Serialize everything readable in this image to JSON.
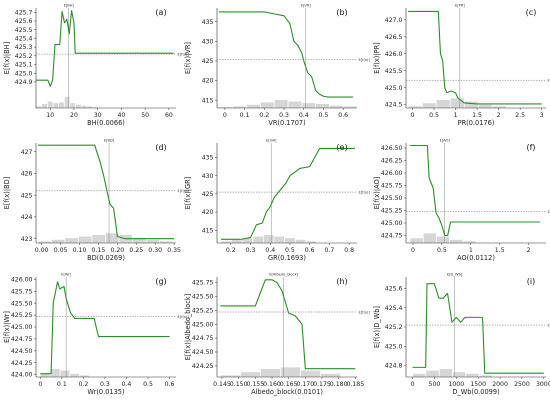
{
  "chart_data": [
    {
      "type": "line",
      "panel": "(a)",
      "xlabel": "BH(0.0066)",
      "ylabel": "E[f(x)|BH]",
      "xlim": [
        4,
        63
      ],
      "ylim": [
        424.6,
        425.75
      ],
      "xticks": [
        10,
        20,
        30,
        40,
        50,
        60
      ],
      "yticks": [
        424.9,
        425.0,
        425.1,
        425.2,
        425.3,
        425.4,
        425.5,
        425.6,
        425.7
      ],
      "ref_x": 17.8,
      "ref_x_label": "E[BH]",
      "ref_y": 425.22,
      "ref_y_label": "E[f(x)]",
      "x": [
        4,
        9,
        10,
        11,
        12,
        14,
        15,
        16,
        17,
        18,
        19,
        20,
        20.5,
        21,
        40,
        50,
        62
      ],
      "y": [
        424.92,
        424.92,
        424.85,
        424.92,
        425.33,
        425.33,
        425.71,
        425.58,
        425.62,
        425.45,
        425.72,
        425.58,
        425.23,
        425.23,
        425.23,
        425.23,
        425.23
      ],
      "histogram": [
        0.1,
        0.25,
        0.4,
        0.3,
        0.35,
        0.7,
        0.3,
        0.2,
        0.15,
        0.1,
        0.05
      ]
    },
    {
      "type": "line",
      "panel": "(b)",
      "xlabel": "VR(0.1707)",
      "ylabel": "E[f(x)|VR]",
      "xlim": [
        -0.04,
        0.67
      ],
      "ylim": [
        413,
        438.5
      ],
      "xticks": [
        0.0,
        0.1,
        0.2,
        0.3,
        0.4,
        0.5,
        0.6
      ],
      "yticks": [
        415,
        420,
        425,
        430,
        435
      ],
      "ref_x": 0.41,
      "ref_x_label": "E[VR]",
      "ref_y": 425.3,
      "ref_y_label": "E[f(x)]",
      "x": [
        -0.03,
        0.2,
        0.25,
        0.3,
        0.33,
        0.35,
        0.37,
        0.39,
        0.4,
        0.42,
        0.44,
        0.46,
        0.48,
        0.5,
        0.52,
        0.55,
        0.6,
        0.65
      ],
      "y": [
        437.5,
        437.5,
        437.0,
        436.5,
        434.5,
        430.0,
        429.0,
        427.0,
        425.0,
        422.0,
        421.0,
        417.5,
        416.5,
        416.0,
        415.8,
        415.8,
        415.8,
        415.8
      ],
      "histogram": [
        0.05,
        0.1,
        0.2,
        0.35,
        0.5,
        0.4,
        0.3,
        0.25,
        0.15,
        0.1
      ]
    },
    {
      "type": "line",
      "panel": "(c)",
      "xlabel": "PR(0.0176)",
      "ylabel": "E[f(x)|PR]",
      "xlim": [
        -0.15,
        3.1
      ],
      "ylim": [
        424.4,
        427.35
      ],
      "xticks": [
        0.0,
        0.5,
        1.0,
        1.5,
        2.0,
        2.5,
        3.0
      ],
      "yticks": [
        424.5,
        425.0,
        425.5,
        426.0,
        426.5,
        427.0
      ],
      "ref_x": 1.1,
      "ref_x_label": "E[PR]",
      "ref_y": 425.22,
      "ref_y_label": "E[f(x)]",
      "x": [
        -0.1,
        0.5,
        0.6,
        0.65,
        0.7,
        0.75,
        0.8,
        0.9,
        1.0,
        1.05,
        1.2,
        1.5,
        2.0,
        3.0
      ],
      "y": [
        427.25,
        427.25,
        427.25,
        426.0,
        425.8,
        425.0,
        424.85,
        424.9,
        424.85,
        424.7,
        424.55,
        424.52,
        424.52,
        424.52
      ],
      "histogram": [
        0.1,
        0.3,
        0.5,
        0.6,
        0.4,
        0.2,
        0.1
      ]
    },
    {
      "type": "line",
      "panel": "(d)",
      "xlabel": "BD(0.0269)",
      "ylabel": "E[f(x)|BD]",
      "xlim": [
        -0.015,
        0.355
      ],
      "ylim": [
        422.8,
        427.4
      ],
      "xticks": [
        0.0,
        0.05,
        0.1,
        0.15,
        0.2,
        0.25,
        0.3,
        0.35
      ],
      "xtick_labels": [
        "0.00",
        "0.05",
        "0.10",
        "0.15",
        "0.20",
        "0.25",
        "0.30",
        "0.35"
      ],
      "yticks": [
        423,
        424,
        425,
        426,
        427
      ],
      "ref_x": 0.178,
      "ref_x_label": "E[BD]",
      "ref_y": 425.2,
      "ref_y_label": "E[f(x)]",
      "x": [
        -0.01,
        0.12,
        0.14,
        0.155,
        0.165,
        0.175,
        0.18,
        0.19,
        0.195,
        0.2,
        0.22,
        0.25,
        0.3,
        0.35
      ],
      "y": [
        427.3,
        427.3,
        427.3,
        426.5,
        425.8,
        425.0,
        424.6,
        424.4,
        423.8,
        423.1,
        423.0,
        423.0,
        423.0,
        423.0
      ],
      "histogram": [
        0.1,
        0.2,
        0.3,
        0.4,
        0.5,
        0.6,
        0.5,
        0.3,
        0.2,
        0.1
      ]
    },
    {
      "type": "line",
      "panel": "(e)",
      "xlabel": "GR(0.1693)",
      "ylabel": "E[f(x)|GR]",
      "xlim": [
        0.13,
        0.84
      ],
      "ylim": [
        411.5,
        439.0
      ],
      "xticks": [
        0.2,
        0.3,
        0.4,
        0.5,
        0.6,
        0.7,
        0.8
      ],
      "yticks": [
        415,
        420,
        425,
        430,
        435
      ],
      "ref_x": 0.405,
      "ref_x_label": "E[GR]",
      "ref_y": 425.5,
      "ref_y_label": "E[f(x)]",
      "x": [
        0.15,
        0.25,
        0.3,
        0.33,
        0.36,
        0.38,
        0.4,
        0.42,
        0.45,
        0.48,
        0.5,
        0.55,
        0.6,
        0.65,
        0.7,
        0.83
      ],
      "y": [
        412.5,
        412.5,
        413.0,
        416.5,
        417.0,
        420.0,
        421.5,
        424.0,
        426.0,
        428.0,
        430.0,
        432.0,
        432.5,
        437.5,
        437.5,
        437.5
      ],
      "histogram": [
        0.1,
        0.2,
        0.3,
        0.4,
        0.5,
        0.4,
        0.3,
        0.2,
        0.1
      ]
    },
    {
      "type": "line",
      "panel": "(f)",
      "xlabel": "AO(0.0112)",
      "ylabel": "E[f(x)|AO]",
      "xlim": [
        -0.12,
        2.3
      ],
      "ylim": [
        424.6,
        426.6
      ],
      "xticks": [
        0.0,
        0.5,
        1.0,
        1.5,
        2.0
      ],
      "yticks": [
        424.75,
        425.0,
        425.25,
        425.5,
        425.75,
        426.0,
        426.25,
        426.5
      ],
      "ref_x": 0.55,
      "ref_x_label": "E[AO]",
      "ref_y": 425.23,
      "ref_y_label": "E[f(x)]",
      "x": [
        -0.05,
        0.25,
        0.28,
        0.35,
        0.4,
        0.45,
        0.5,
        0.55,
        0.6,
        0.65,
        0.7,
        2.2
      ],
      "y": [
        426.55,
        426.55,
        425.9,
        425.7,
        425.2,
        425.1,
        424.95,
        424.75,
        424.75,
        425.02,
        425.02,
        425.02
      ],
      "histogram": [
        0.3,
        0.6,
        0.4,
        0.2,
        0.1
      ]
    },
    {
      "type": "line",
      "panel": "(g)",
      "xlabel": "Wr(0.0135)",
      "ylabel": "E[f(x)|Wr]",
      "xlim": [
        -0.02,
        0.63
      ],
      "ylim": [
        423.95,
        426.05
      ],
      "xticks": [
        0.0,
        0.1,
        0.2,
        0.3,
        0.4,
        0.5,
        0.6
      ],
      "yticks": [
        424.0,
        424.25,
        424.5,
        424.75,
        425.0,
        425.25,
        425.5,
        425.75,
        426.0
      ],
      "ref_x": 0.12,
      "ref_x_label": "E[Wr]",
      "ref_y": 425.22,
      "ref_y_label": "E[f(x)]",
      "x": [
        0.0,
        0.05,
        0.06,
        0.08,
        0.09,
        0.11,
        0.12,
        0.14,
        0.16,
        0.2,
        0.25,
        0.27,
        0.3,
        0.6
      ],
      "y": [
        424.02,
        424.02,
        425.5,
        425.95,
        425.8,
        425.85,
        425.6,
        425.3,
        425.18,
        425.18,
        425.18,
        424.8,
        424.8,
        424.8
      ],
      "histogram": [
        0.2,
        0.5,
        0.4,
        0.2,
        0.1
      ]
    },
    {
      "type": "line",
      "panel": "(h)",
      "xlabel": "Albedo_block(0.0101)",
      "ylabel": "E[f(x)|Albedo_block]",
      "xlim": [
        0.1435,
        0.1855
      ],
      "ylim": [
        424.05,
        425.85
      ],
      "xticks": [
        0.145,
        0.15,
        0.155,
        0.16,
        0.165,
        0.17,
        0.175,
        0.18,
        0.185
      ],
      "xtick_labels": [
        "0.145",
        "0.150",
        "0.155",
        "0.160",
        "0.165",
        "0.170",
        "0.175",
        "0.180",
        "0.185"
      ],
      "yticks": [
        424.25,
        424.5,
        424.75,
        425.0,
        425.25,
        425.5,
        425.75
      ],
      "ref_x": 0.1635,
      "ref_x_label": "E[Albedo_block]",
      "ref_y": 425.22,
      "ref_y_label": "E[f(x)]",
      "x": [
        0.1445,
        0.155,
        0.158,
        0.16,
        0.1615,
        0.163,
        0.165,
        0.167,
        0.169,
        0.17,
        0.172,
        0.185
      ],
      "y": [
        425.33,
        425.33,
        425.8,
        425.8,
        425.75,
        425.6,
        425.2,
        425.15,
        425.0,
        424.2,
        424.2,
        424.2
      ],
      "histogram": [
        0.1,
        0.3,
        0.5,
        0.6,
        0.4,
        0.2
      ]
    },
    {
      "type": "line",
      "panel": "(i)",
      "xlabel": "D_Wb(0.0099)",
      "ylabel": "E[f(x)|D_Wb]",
      "xlim": [
        -150,
        3050
      ],
      "ylim": [
        424.68,
        425.72
      ],
      "xticks": [
        0,
        500,
        1000,
        1500,
        2000,
        2500,
        3000
      ],
      "yticks": [
        424.8,
        425.0,
        425.2,
        425.4,
        425.6
      ],
      "ref_x": 960,
      "ref_x_label": "E[D_Wb]",
      "ref_y": 425.22,
      "ref_y_label": "E[f(x)]",
      "x": [
        0,
        300,
        330,
        500,
        600,
        700,
        800,
        900,
        1000,
        1100,
        1200,
        1400,
        1600,
        1650,
        1700,
        3000
      ],
      "y": [
        424.78,
        424.78,
        425.65,
        425.65,
        425.5,
        425.5,
        425.55,
        425.25,
        425.3,
        425.25,
        425.3,
        425.3,
        425.3,
        424.72,
        424.72,
        424.72
      ],
      "histogram": [
        0.2,
        0.4,
        0.5,
        0.3,
        0.2,
        0.1
      ]
    }
  ]
}
